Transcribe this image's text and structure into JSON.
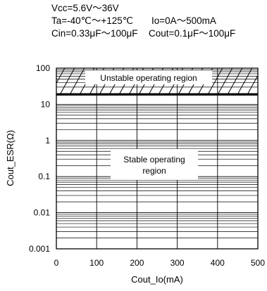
{
  "conditions": {
    "line1": "Vcc=5.6V～36V",
    "line2a": "Ta=-40℃～+125℃",
    "line2b": "Io=0A～500mA",
    "line3a": "Cin=0.33μF～100μF",
    "line3b": "Cout=0.1μF～100μF"
  },
  "chart_data": {
    "type": "area",
    "title": "",
    "xlabel": "Cout_Io(mA)",
    "ylabel": "Cout_ESR(Ω)",
    "xlim": [
      0,
      500
    ],
    "ylim": [
      0.001,
      100
    ],
    "yscale": "log",
    "grid": true,
    "x_ticks": [
      "0",
      "100",
      "200",
      "300",
      "400",
      "500"
    ],
    "y_ticks": [
      "0.001",
      "0.01",
      "0.1",
      "1",
      "10",
      "100"
    ],
    "regions": [
      {
        "label": "Unstable operating region",
        "x": [
          0,
          500
        ],
        "y_range": [
          20,
          100
        ],
        "fill": "hatched"
      },
      {
        "label_line1": "Stable operating",
        "label_line2": "region",
        "x": [
          0,
          500
        ],
        "y_range": [
          0.001,
          20
        ],
        "fill": "blank"
      }
    ],
    "boundary": {
      "esr": 20,
      "x": [
        0,
        500
      ]
    }
  }
}
